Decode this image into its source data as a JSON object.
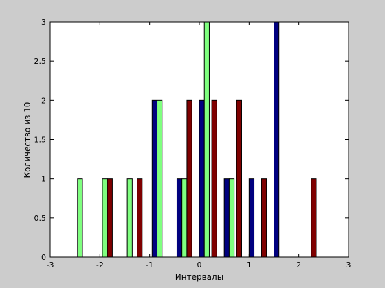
{
  "chart_data": {
    "type": "bar",
    "title": "",
    "xlabel": "Интервалы",
    "ylabel": "Количество из 10",
    "xlim": [
      -3,
      3
    ],
    "ylim": [
      0,
      3
    ],
    "xticks": [
      "-3",
      "-2",
      "-1",
      "0",
      "1",
      "2",
      "3"
    ],
    "yticks": [
      "0",
      "0.5",
      "1",
      "1.5",
      "2",
      "2.5",
      "3"
    ],
    "grid": false,
    "legend": "none",
    "series": [
      {
        "color": "#00007f",
        "x": [
          -0.9,
          -0.4,
          0.05,
          0.55,
          1.05,
          1.55
        ],
        "values": [
          2,
          1,
          2,
          1,
          1,
          3
        ]
      },
      {
        "color": "#7fff7f",
        "x": [
          -2.4,
          -1.9,
          -1.4,
          -0.8,
          -0.3,
          0.15,
          0.65
        ],
        "values": [
          1,
          1,
          1,
          2,
          1,
          3,
          1
        ]
      },
      {
        "color": "#7f0000",
        "x": [
          -1.8,
          -1.2,
          -0.2,
          0.3,
          0.8,
          1.3,
          2.3
        ],
        "values": [
          1,
          1,
          2,
          2,
          2,
          1,
          1
        ]
      }
    ]
  }
}
